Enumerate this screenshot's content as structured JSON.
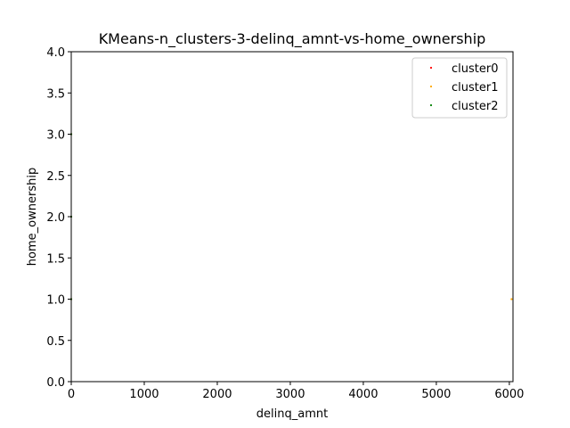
{
  "chart_data": {
    "type": "scatter",
    "title": "KMeans-n_clusters-3-delinq_amnt-vs-home_ownership",
    "xlabel": "delinq_amnt",
    "ylabel": "home_ownership",
    "xlim": [
      0,
      6050
    ],
    "ylim": [
      0.0,
      4.0
    ],
    "xticks": [
      0,
      1000,
      2000,
      3000,
      4000,
      5000,
      6000
    ],
    "xtick_labels": [
      "0",
      "1000",
      "2000",
      "3000",
      "4000",
      "5000",
      "6000"
    ],
    "yticks": [
      0.0,
      0.5,
      1.0,
      1.5,
      2.0,
      2.5,
      3.0,
      3.5,
      4.0
    ],
    "ytick_labels": [
      "0.0",
      "0.5",
      "1.0",
      "1.5",
      "2.0",
      "2.5",
      "3.0",
      "3.5",
      "4.0"
    ],
    "grid": false,
    "legend_position": "top-right",
    "series": [
      {
        "name": "cluster0",
        "color": "#ff0000",
        "points": [
          [
            0,
            1
          ],
          [
            0,
            2
          ],
          [
            0,
            3
          ]
        ]
      },
      {
        "name": "cluster1",
        "color": "#ffa500",
        "points": [
          [
            6030,
            1
          ]
        ]
      },
      {
        "name": "cluster2",
        "color": "#008000",
        "points": [
          [
            0,
            1
          ],
          [
            0,
            2
          ],
          [
            0,
            3
          ]
        ]
      }
    ]
  }
}
